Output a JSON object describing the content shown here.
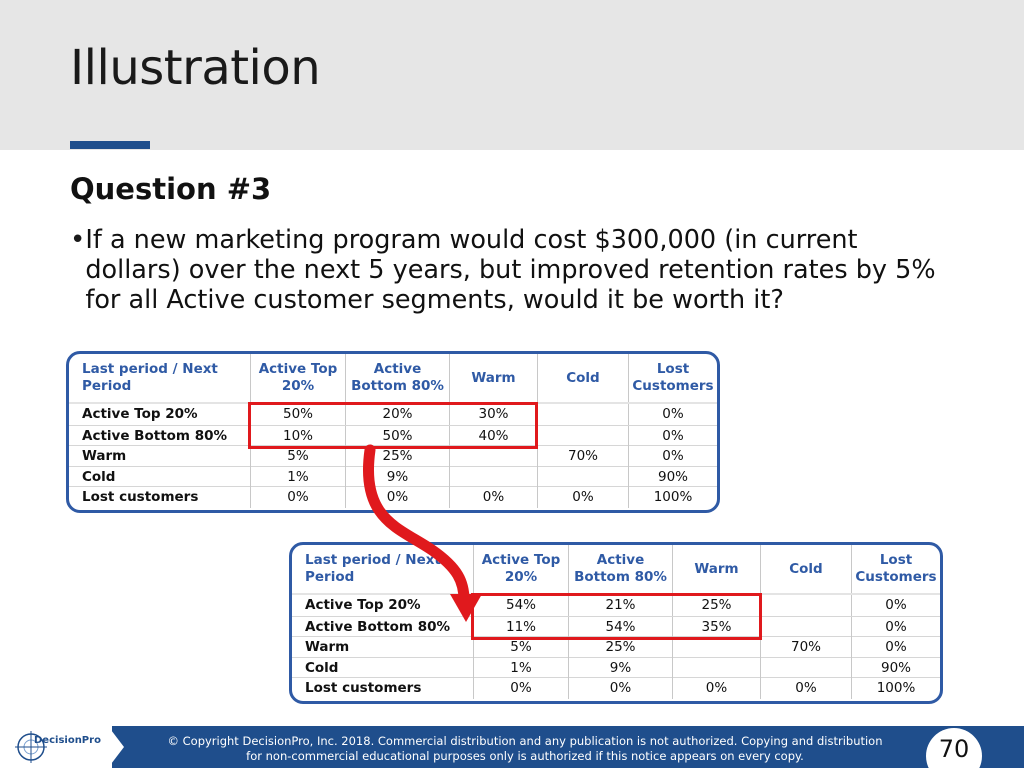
{
  "slide": {
    "title": "Illustration",
    "question": "Question #3",
    "bullet": "If a new marketing program would cost $300,000 (in current dollars) over the next 5 years, but improved retention rates by 5% for all Active customer segments, would it be worth it?",
    "page_number": "70"
  },
  "table1": {
    "headers": [
      "Last period / Next Period",
      "Active Top 20%",
      "Active Bottom 80%",
      "Warm",
      "Cold",
      "Lost Customers"
    ],
    "rows": [
      [
        "Active Top 20%",
        "50%",
        "20%",
        "30%",
        "",
        "0%"
      ],
      [
        "Active Bottom 80%",
        "10%",
        "50%",
        "40%",
        "",
        "0%"
      ],
      [
        "Warm",
        "5%",
        "25%",
        "",
        "70%",
        "0%"
      ],
      [
        "Cold",
        "1%",
        "9%",
        "",
        "",
        "90%"
      ],
      [
        "Lost customers",
        "0%",
        "0%",
        "0%",
        "0%",
        "100%"
      ]
    ]
  },
  "table2": {
    "headers": [
      "Last period / Next Period",
      "Active Top 20%",
      "Active Bottom 80%",
      "Warm",
      "Cold",
      "Lost Customers"
    ],
    "rows": [
      [
        "Active Top 20%",
        "54%",
        "21%",
        "25%",
        "",
        "0%"
      ],
      [
        "Active Bottom 80%",
        "11%",
        "54%",
        "35%",
        "",
        "0%"
      ],
      [
        "Warm",
        "5%",
        "25%",
        "",
        "70%",
        "0%"
      ],
      [
        "Cold",
        "1%",
        "9%",
        "",
        "",
        "90%"
      ],
      [
        "Lost customers",
        "0%",
        "0%",
        "0%",
        "0%",
        "100%"
      ]
    ]
  },
  "footer": {
    "logo_text": "DecisionPro",
    "copyright_line1": "© Copyright DecisionPro, Inc.  2018. Commercial distribution and any publication is not authorized. Copying and distribution",
    "copyright_line2": "for non-commercial educational purposes only is authorized if this notice appears on every copy."
  },
  "colors": {
    "accent_blue": "#1f4e8c",
    "table_border": "#2f5aa5",
    "highlight_red": "#e0191d",
    "header_band": "#e6e6e6"
  }
}
